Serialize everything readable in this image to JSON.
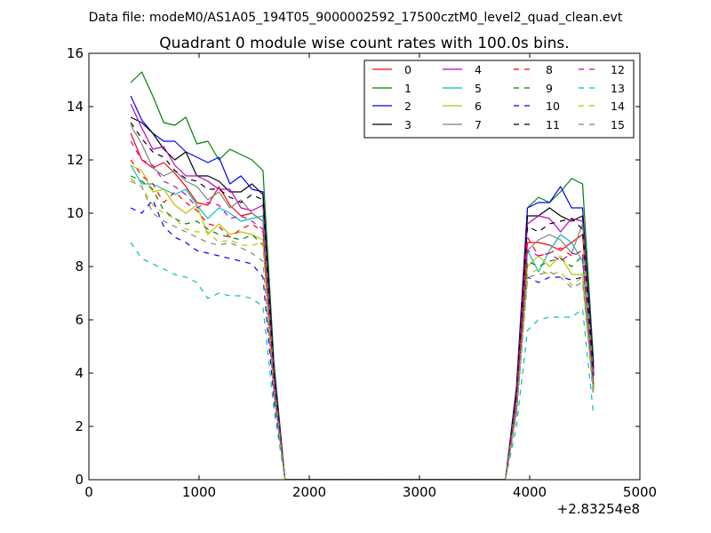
{
  "chart_data": {
    "type": "line",
    "suptitle": "Data file: modeM0/AS1A05_194T05_9000002592_17500cztM0_level2_quad_clean.evt",
    "title": "Quadrant 0 module wise count rates with 100.0s bins.",
    "xlabel": "",
    "ylabel": "",
    "x_offset_label": "+2.83254e8",
    "xlim": [
      0,
      5000
    ],
    "ylim": [
      0,
      16
    ],
    "xticks": [
      0,
      1000,
      2000,
      3000,
      4000,
      5000
    ],
    "xtick_labels": [
      "0",
      "1000",
      "2000",
      "3000",
      "4000",
      "5000"
    ],
    "yticks": [
      0,
      2,
      4,
      6,
      8,
      10,
      12,
      14,
      16
    ],
    "ytick_labels": [
      "0",
      "2",
      "4",
      "6",
      "8",
      "10",
      "12",
      "14",
      "16"
    ],
    "grid": false,
    "legend_position": "top-right",
    "legend_columns": 4,
    "x": [
      380,
      480,
      580,
      680,
      780,
      880,
      980,
      1080,
      1180,
      1280,
      1380,
      1480,
      1580,
      1680,
      1780,
      1880,
      1980,
      2080,
      2180,
      2280,
      2380,
      2480,
      2580,
      2680,
      2780,
      2880,
      2980,
      3080,
      3180,
      3280,
      3380,
      3480,
      3580,
      3680,
      3780,
      3880,
      3980,
      4080,
      4180,
      4280,
      4380,
      4480,
      4580
    ],
    "series": [
      {
        "name": "0",
        "color": "#ff0000",
        "dash": "solid",
        "values": [
          13.0,
          12.0,
          11.7,
          11.9,
          11.5,
          11.0,
          10.4,
          10.3,
          11.0,
          10.3,
          9.9,
          10.0,
          9.7,
          3.8,
          0,
          0,
          0,
          0,
          0,
          0,
          0,
          0,
          0,
          0,
          0,
          0,
          0,
          0,
          0,
          0,
          0,
          0,
          0,
          0,
          0,
          3.0,
          8.9,
          8.9,
          8.8,
          8.6,
          8.9,
          9.2,
          4.0
        ]
      },
      {
        "name": "1",
        "color": "#008000",
        "dash": "solid",
        "values": [
          14.9,
          15.3,
          14.4,
          13.4,
          13.3,
          13.6,
          12.6,
          12.7,
          12.0,
          12.4,
          12.2,
          12.0,
          11.6,
          4.4,
          0,
          0,
          0,
          0,
          0,
          0,
          0,
          0,
          0,
          0,
          0,
          0,
          0,
          0,
          0,
          0,
          0,
          0,
          0,
          0,
          0,
          3.5,
          10.2,
          10.6,
          10.4,
          10.8,
          11.3,
          11.1,
          4.4
        ]
      },
      {
        "name": "2",
        "color": "#0000ff",
        "dash": "solid",
        "values": [
          14.4,
          13.5,
          13.0,
          12.7,
          12.7,
          12.3,
          12.1,
          11.9,
          12.1,
          11.1,
          11.4,
          10.9,
          10.8,
          4.1,
          0,
          0,
          0,
          0,
          0,
          0,
          0,
          0,
          0,
          0,
          0,
          0,
          0,
          0,
          0,
          0,
          0,
          0,
          0,
          0,
          0,
          3.4,
          10.2,
          10.4,
          10.4,
          11.0,
          10.2,
          10.2,
          4.2
        ]
      },
      {
        "name": "3",
        "color": "#000000",
        "dash": "solid",
        "values": [
          13.6,
          13.4,
          13.0,
          12.4,
          12.0,
          12.3,
          11.4,
          11.4,
          11.2,
          10.8,
          10.8,
          11.1,
          10.7,
          4.0,
          0,
          0,
          0,
          0,
          0,
          0,
          0,
          0,
          0,
          0,
          0,
          0,
          0,
          0,
          0,
          0,
          0,
          0,
          0,
          0,
          0,
          3.3,
          9.9,
          9.9,
          10.2,
          9.9,
          9.7,
          9.9,
          4.1
        ]
      },
      {
        "name": "4",
        "color": "#bf00bf",
        "dash": "solid",
        "values": [
          14.1,
          13.2,
          12.4,
          12.5,
          11.8,
          11.4,
          11.4,
          11.2,
          10.9,
          10.9,
          10.2,
          10.1,
          10.3,
          3.9,
          0,
          0,
          0,
          0,
          0,
          0,
          0,
          0,
          0,
          0,
          0,
          0,
          0,
          0,
          0,
          0,
          0,
          0,
          0,
          0,
          0,
          3.2,
          9.6,
          9.9,
          9.8,
          9.3,
          9.8,
          9.7,
          3.9
        ]
      },
      {
        "name": "5",
        "color": "#00bfbf",
        "dash": "solid",
        "values": [
          11.8,
          11.1,
          11.1,
          10.9,
          10.7,
          10.9,
          10.3,
          9.8,
          10.2,
          10.0,
          9.7,
          9.8,
          9.9,
          3.6,
          0,
          0,
          0,
          0,
          0,
          0,
          0,
          0,
          0,
          0,
          0,
          0,
          0,
          0,
          0,
          0,
          0,
          0,
          0,
          0,
          0,
          2.8,
          8.6,
          7.8,
          8.6,
          9.2,
          8.9,
          8.2,
          3.5
        ]
      },
      {
        "name": "6",
        "color": "#bfbf00",
        "dash": "solid",
        "values": [
          11.8,
          11.6,
          10.8,
          10.9,
          10.3,
          10.0,
          10.3,
          9.2,
          9.6,
          9.2,
          9.3,
          9.2,
          9.0,
          3.3,
          0,
          0,
          0,
          0,
          0,
          0,
          0,
          0,
          0,
          0,
          0,
          0,
          0,
          0,
          0,
          0,
          0,
          0,
          0,
          0,
          0,
          2.6,
          8.0,
          8.4,
          8.0,
          8.4,
          7.7,
          7.7,
          3.3
        ]
      },
      {
        "name": "7",
        "color": "#808080",
        "dash": "solid",
        "values": [
          13.3,
          12.6,
          11.7,
          11.4,
          11.6,
          11.2,
          11.0,
          10.5,
          10.8,
          10.2,
          10.5,
          10.0,
          9.7,
          3.7,
          0,
          0,
          0,
          0,
          0,
          0,
          0,
          0,
          0,
          0,
          0,
          0,
          0,
          0,
          0,
          0,
          0,
          0,
          0,
          0,
          0,
          3.0,
          8.6,
          9.0,
          9.2,
          9.0,
          8.5,
          9.6,
          3.7
        ]
      },
      {
        "name": "8",
        "color": "#ff0000",
        "dash": "dashed",
        "values": [
          12.0,
          11.4,
          11.1,
          10.4,
          10.8,
          10.4,
          10.1,
          9.6,
          9.5,
          9.1,
          9.4,
          9.6,
          9.3,
          3.5,
          0,
          0,
          0,
          0,
          0,
          0,
          0,
          0,
          0,
          0,
          0,
          0,
          0,
          0,
          0,
          0,
          0,
          0,
          0,
          0,
          0,
          2.9,
          9.1,
          8.4,
          8.5,
          8.7,
          8.4,
          8.6,
          3.6
        ]
      },
      {
        "name": "9",
        "color": "#008000",
        "dash": "dashed",
        "values": [
          11.4,
          11.2,
          10.9,
          10.1,
          9.8,
          9.6,
          9.7,
          9.4,
          9.2,
          9.1,
          9.0,
          9.2,
          8.8,
          3.3,
          0,
          0,
          0,
          0,
          0,
          0,
          0,
          0,
          0,
          0,
          0,
          0,
          0,
          0,
          0,
          0,
          0,
          0,
          0,
          0,
          0,
          2.7,
          8.2,
          8.0,
          8.2,
          8.3,
          8.0,
          8.4,
          3.4
        ]
      },
      {
        "name": "10",
        "color": "#0000ff",
        "dash": "dashed",
        "values": [
          10.2,
          10.0,
          10.5,
          9.5,
          9.1,
          8.9,
          8.6,
          8.5,
          8.4,
          8.3,
          8.2,
          8.1,
          7.6,
          3.0,
          0,
          0,
          0,
          0,
          0,
          0,
          0,
          0,
          0,
          0,
          0,
          0,
          0,
          0,
          0,
          0,
          0,
          0,
          0,
          0,
          0,
          2.5,
          7.6,
          7.4,
          7.6,
          7.6,
          7.5,
          7.6,
          3.1
        ]
      },
      {
        "name": "11",
        "color": "#000000",
        "dash": "dashed",
        "values": [
          13.4,
          12.8,
          12.3,
          12.1,
          11.6,
          11.3,
          11.2,
          10.9,
          10.9,
          10.6,
          10.4,
          10.7,
          10.5,
          3.9,
          0,
          0,
          0,
          0,
          0,
          0,
          0,
          0,
          0,
          0,
          0,
          0,
          0,
          0,
          0,
          0,
          0,
          0,
          0,
          0,
          0,
          3.2,
          9.5,
          9.3,
          9.6,
          9.7,
          9.8,
          9.4,
          3.9
        ]
      },
      {
        "name": "12",
        "color": "#bf00bf",
        "dash": "dashed",
        "values": [
          12.7,
          12.0,
          11.8,
          11.2,
          11.0,
          10.7,
          10.2,
          10.4,
          10.3,
          9.8,
          9.9,
          9.7,
          9.4,
          3.6,
          0,
          0,
          0,
          0,
          0,
          0,
          0,
          0,
          0,
          0,
          0,
          0,
          0,
          0,
          0,
          0,
          0,
          0,
          0,
          0,
          0,
          3.0,
          8.6,
          8.4,
          8.5,
          8.2,
          8.5,
          8.4,
          3.6
        ]
      },
      {
        "name": "13",
        "color": "#00bfbf",
        "dash": "dashed",
        "values": [
          8.9,
          8.3,
          8.1,
          7.9,
          7.7,
          7.6,
          7.4,
          6.8,
          7.0,
          6.9,
          6.9,
          6.8,
          6.5,
          2.6,
          0,
          0,
          0,
          0,
          0,
          0,
          0,
          0,
          0,
          0,
          0,
          0,
          0,
          0,
          0,
          0,
          0,
          0,
          0,
          0,
          0,
          2.0,
          5.6,
          6.0,
          6.1,
          6.1,
          6.1,
          6.4,
          2.4
        ]
      },
      {
        "name": "14",
        "color": "#bfbf00",
        "dash": "dashed",
        "values": [
          11.3,
          11.0,
          10.3,
          10.0,
          9.8,
          9.4,
          9.3,
          9.3,
          8.9,
          9.0,
          8.8,
          8.8,
          8.9,
          3.3,
          0,
          0,
          0,
          0,
          0,
          0,
          0,
          0,
          0,
          0,
          0,
          0,
          0,
          0,
          0,
          0,
          0,
          0,
          0,
          0,
          0,
          2.6,
          7.7,
          7.9,
          7.7,
          7.8,
          7.3,
          7.6,
          3.2
        ]
      },
      {
        "name": "15",
        "color": "#808080",
        "dash": "dashed",
        "values": [
          11.2,
          11.0,
          10.0,
          9.7,
          9.5,
          9.3,
          9.1,
          8.9,
          8.8,
          8.9,
          8.7,
          8.5,
          8.2,
          3.2,
          0,
          0,
          0,
          0,
          0,
          0,
          0,
          0,
          0,
          0,
          0,
          0,
          0,
          0,
          0,
          0,
          0,
          0,
          0,
          0,
          0,
          2.5,
          7.6,
          7.7,
          7.8,
          7.6,
          7.2,
          7.4,
          3.3
        ]
      }
    ]
  }
}
